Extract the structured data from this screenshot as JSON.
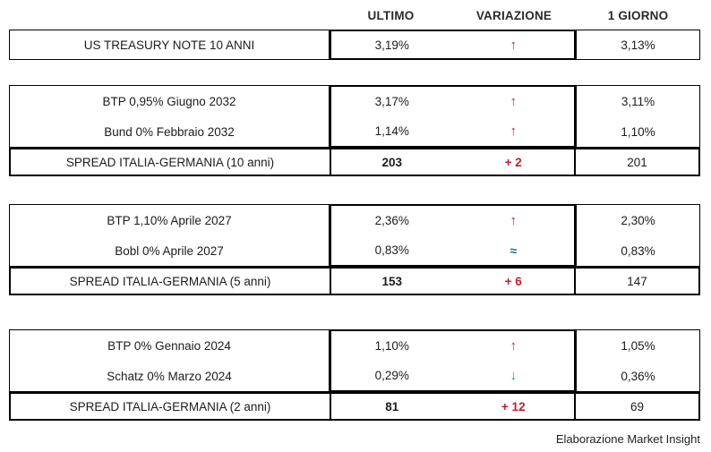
{
  "chart_data": {
    "type": "table",
    "columns": [
      "",
      "ULTIMO",
      "VARIAZIONE",
      "1 GIORNO"
    ],
    "blocks": [
      {
        "rows": [
          {
            "label": "US TREASURY NOTE 10 ANNI",
            "ultimo": "3,19%",
            "dir": "up",
            "icon": "↑",
            "giorno": "3,13%"
          }
        ]
      },
      {
        "rows": [
          {
            "label": "BTP 0,95% Giugno 2032",
            "ultimo": "3,17%",
            "dir": "up",
            "icon": "↑",
            "giorno": "3,11%"
          },
          {
            "label": "Bund 0% Febbraio 2032",
            "ultimo": "1,14%",
            "dir": "up",
            "icon": "↑",
            "giorno": "1,10%"
          }
        ],
        "spread": {
          "label": "SPREAD ITALIA-GERMANIA (10 anni)",
          "value": "203",
          "change": "+ 2",
          "giorno": "201"
        }
      },
      {
        "rows": [
          {
            "label": "BTP 1,10% Aprile 2027",
            "ultimo": "2,36%",
            "dir": "up",
            "icon": "↑",
            "giorno": "2,30%"
          },
          {
            "label": "Bobl 0% Aprile 2027",
            "ultimo": "0,83%",
            "dir": "flat",
            "icon": "≈",
            "giorno": "0,83%"
          }
        ],
        "spread": {
          "label": "SPREAD ITALIA-GERMANIA (5 anni)",
          "value": "153",
          "change": "+ 6",
          "giorno": "147"
        }
      },
      {
        "rows": [
          {
            "label": "BTP 0% Gennaio 2024",
            "ultimo": "1,10%",
            "dir": "up",
            "icon": "↑",
            "giorno": "1,05%"
          },
          {
            "label": "Schatz 0% Marzo 2024",
            "ultimo": "0,29%",
            "dir": "down",
            "icon": "↓",
            "giorno": "0,36%"
          }
        ],
        "spread": {
          "label": "SPREAD ITALIA-GERMANIA (2 anni)",
          "value": "81",
          "change": "+ 12",
          "giorno": "69"
        }
      }
    ]
  },
  "footer": {
    "credit": "Elaborazione Market Insight"
  },
  "colors": {
    "up_arrow": "#c0202d",
    "down_arrow": "#00a651",
    "flat_symbol": "#176e8f",
    "spread_change": "#c0202d",
    "border": "#000000",
    "text": "#1c1c1c"
  }
}
